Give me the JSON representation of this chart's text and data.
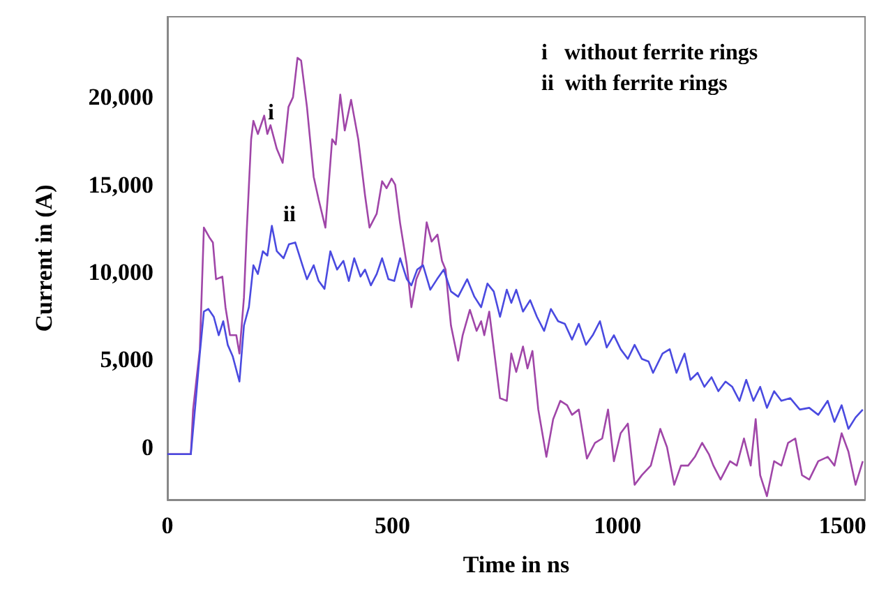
{
  "chart_data": {
    "type": "line",
    "xlabel": "Time in ns",
    "ylabel": "Current in (A)",
    "xlim": [
      0,
      1550
    ],
    "xticks": [
      0,
      500,
      1000,
      1500
    ],
    "ylim": [
      -3000,
      24600
    ],
    "yticks": [
      0,
      {
        "value": 5000,
        "label": "5,000"
      },
      {
        "value": 10000,
        "label": "10,000"
      },
      {
        "value": 15000,
        "label": "15,000"
      },
      {
        "value": 20000,
        "label": "20,000"
      }
    ],
    "annotations": [
      "i",
      "ii",
      "i   without ferrite rings",
      "ii  with ferrite rings"
    ],
    "series": [
      {
        "color": "#a046a8",
        "x": [
          0,
          52,
          57,
          72,
          81,
          93,
          101,
          108,
          122,
          129,
          139,
          153,
          160,
          170,
          176,
          186,
          191,
          201,
          215,
          222,
          229,
          243,
          256,
          269,
          279,
          289,
          297,
          310,
          325,
          336,
          351,
          366,
          374,
          384,
          394,
          408,
          424,
          439,
          449,
          465,
          477,
          487,
          498,
          506,
          517,
          532,
          542,
          553,
          566,
          576,
          587,
          600,
          610,
          618,
          630,
          646,
          656,
          672,
          687,
          697,
          704,
          715,
          728,
          739,
          754,
          764,
          775,
          790,
          800,
          811,
          824,
          842,
          857,
          873,
          888,
          899,
          914,
          932,
          950,
          966,
          979,
          992,
          1007,
          1023,
          1038,
          1054,
          1074,
          1095,
          1110,
          1126,
          1141,
          1157,
          1172,
          1188,
          1203,
          1213,
          1229,
          1250,
          1265,
          1281,
          1296,
          1307,
          1317,
          1332,
          1348,
          1364,
          1379,
          1395,
          1410,
          1426,
          1446,
          1467,
          1482,
          1498,
          1513,
          1529,
          1545
        ],
        "values": [
          -400,
          -400,
          2150,
          5600,
          12550,
          12000,
          11700,
          9600,
          9750,
          8000,
          6400,
          6400,
          5350,
          8550,
          12250,
          17600,
          18650,
          17900,
          18950,
          17900,
          18400,
          17050,
          16250,
          19450,
          20000,
          22250,
          22100,
          19450,
          15450,
          14150,
          12550,
          17600,
          17300,
          20150,
          18100,
          19850,
          17600,
          14400,
          12550,
          13350,
          15200,
          14800,
          15350,
          15000,
          12800,
          10400,
          8000,
          9600,
          10400,
          12850,
          11750,
          12150,
          10650,
          10150,
          6950,
          4950,
          6400,
          7850,
          6650,
          7200,
          6400,
          7750,
          5050,
          2800,
          2650,
          5350,
          4300,
          5750,
          4500,
          5500,
          2150,
          -550,
          1600,
          2650,
          2400,
          1850,
          2150,
          -650,
          250,
          500,
          2150,
          -800,
          800,
          1350,
          -2150,
          -1600,
          -1050,
          1050,
          0,
          -2150,
          -1050,
          -1050,
          -550,
          250,
          -400,
          -1050,
          -1850,
          -800,
          -1050,
          500,
          -1050,
          1600,
          -1600,
          -2800,
          -800,
          -1050,
          250,
          500,
          -1600,
          -1850,
          -800,
          -550,
          -1050,
          800,
          -250,
          -2150,
          -800
        ]
      },
      {
        "color": "#4a4ae0",
        "x": [
          0,
          52,
          62,
          72,
          81,
          91,
          103,
          114,
          124,
          134,
          145,
          160,
          170,
          181,
          191,
          201,
          212,
          222,
          232,
          243,
          258,
          270,
          284,
          300,
          310,
          325,
          336,
          349,
          362,
          377,
          391,
          403,
          415,
          429,
          439,
          452,
          465,
          477,
          491,
          504,
          517,
          532,
          542,
          555,
          568,
          584,
          599,
          614,
          630,
          646,
          666,
          682,
          697,
          711,
          725,
          739,
          754,
          764,
          775,
          790,
          806,
          821,
          837,
          852,
          868,
          883,
          899,
          914,
          930,
          945,
          961,
          976,
          992,
          1007,
          1023,
          1038,
          1054,
          1069,
          1079,
          1100,
          1116,
          1131,
          1149,
          1162,
          1178,
          1193,
          1209,
          1224,
          1240,
          1255,
          1271,
          1286,
          1302,
          1317,
          1332,
          1348,
          1364,
          1384,
          1405,
          1426,
          1446,
          1467,
          1482,
          1498,
          1513,
          1529,
          1545
        ],
        "values": [
          -400,
          -400,
          2400,
          5350,
          7750,
          7900,
          7450,
          6400,
          7200,
          5850,
          5200,
          3750,
          6950,
          8000,
          10400,
          9900,
          11200,
          10950,
          12650,
          11200,
          10800,
          11600,
          11700,
          10400,
          9600,
          10400,
          9500,
          9050,
          11200,
          10150,
          10650,
          9500,
          10800,
          9750,
          10150,
          9250,
          9900,
          10800,
          9600,
          9500,
          10800,
          9600,
          9250,
          10150,
          10400,
          9000,
          9600,
          10150,
          8900,
          8600,
          9600,
          8600,
          8000,
          9350,
          8900,
          7450,
          9000,
          8250,
          9000,
          7750,
          8400,
          7450,
          6650,
          7900,
          7200,
          7050,
          6150,
          7050,
          5850,
          6400,
          7200,
          5700,
          6400,
          5600,
          5050,
          5850,
          5050,
          4900,
          4250,
          5350,
          5600,
          4250,
          5350,
          3850,
          4250,
          3450,
          4000,
          3200,
          3750,
          3450,
          2650,
          3850,
          2650,
          3450,
          2250,
          3200,
          2650,
          2800,
          2150,
          2250,
          1850,
          2650,
          1450,
          2400,
          1050,
          1700,
          2150
        ]
      }
    ]
  }
}
